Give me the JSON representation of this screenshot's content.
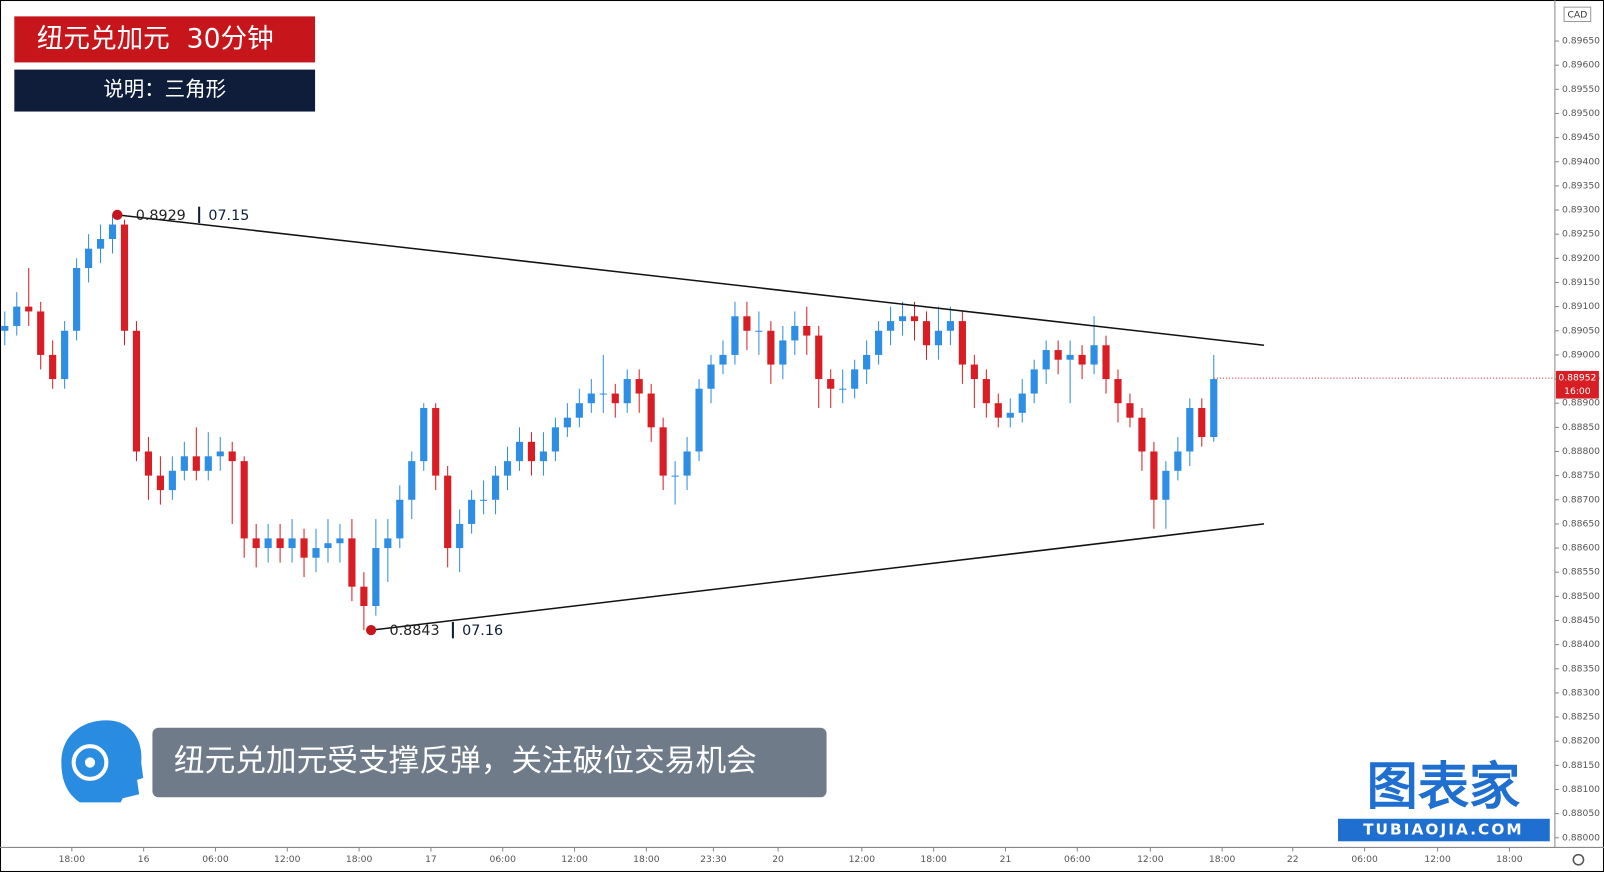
{
  "chart_data": {
    "type": "candlestick",
    "title": "纽元兑加元  30分钟",
    "subtitle": "说明：三角形",
    "caption": "纽元兑加元受支撑反弹，关注破位交易机会",
    "currency": "CAD",
    "watermark": "图表家",
    "watermark_url": "TUBIAOJIA.COM",
    "up_color": "#2e8ee3",
    "down_color": "#d81e24",
    "open": [
      0.8905,
      0.8906,
      0.891,
      0.8909,
      0.89,
      0.8895,
      0.8905,
      0.8918,
      0.8922,
      0.8924,
      0.8927,
      0.8905,
      0.888,
      0.8875,
      0.8872,
      0.8876,
      0.8879,
      0.8876,
      0.8879,
      0.888,
      0.8878,
      0.8862,
      0.886,
      0.8862,
      0.886,
      0.8862,
      0.8858,
      0.886,
      0.8861,
      0.8862,
      0.8852,
      0.8848,
      0.886,
      0.8862,
      0.887,
      0.8878,
      0.8889,
      0.8875,
      0.886,
      0.8865,
      0.887,
      0.887,
      0.8875,
      0.8878,
      0.8882,
      0.8878,
      0.888,
      0.8885,
      0.8887,
      0.889,
      0.8892,
      0.8892,
      0.889,
      0.8895,
      0.8892,
      0.8885,
      0.8875,
      0.8875,
      0.888,
      0.8893,
      0.8898,
      0.89,
      0.8908,
      0.8905,
      0.8905,
      0.8898,
      0.8903,
      0.8906,
      0.8904,
      0.8895,
      0.8893,
      0.8893,
      0.8897,
      0.89,
      0.8905,
      0.8907,
      0.8908,
      0.8907,
      0.8902,
      0.8905,
      0.8907,
      0.8898,
      0.8895,
      0.889,
      0.8887,
      0.8888,
      0.8892,
      0.8897,
      0.8901,
      0.8899,
      0.89,
      0.8898,
      0.8902,
      0.8895,
      0.889,
      0.8887,
      0.888,
      0.887,
      0.8876,
      0.888,
      0.8889,
      0.8883
    ],
    "high": [
      0.8909,
      0.8913,
      0.8918,
      0.8911,
      0.8903,
      0.8907,
      0.892,
      0.8925,
      0.8927,
      0.8929,
      0.8928,
      0.8907,
      0.8883,
      0.8879,
      0.8879,
      0.8882,
      0.8885,
      0.8884,
      0.8883,
      0.8882,
      0.8879,
      0.8865,
      0.8865,
      0.8865,
      0.8866,
      0.8864,
      0.8864,
      0.8866,
      0.8865,
      0.8866,
      0.8855,
      0.8866,
      0.8866,
      0.8873,
      0.888,
      0.889,
      0.889,
      0.8877,
      0.8868,
      0.8872,
      0.8874,
      0.8877,
      0.8881,
      0.8885,
      0.8884,
      0.8884,
      0.8887,
      0.889,
      0.8893,
      0.8895,
      0.89,
      0.8894,
      0.8897,
      0.8897,
      0.8894,
      0.8887,
      0.8878,
      0.8883,
      0.8895,
      0.89,
      0.8903,
      0.8911,
      0.8911,
      0.8909,
      0.8907,
      0.8906,
      0.8909,
      0.891,
      0.8906,
      0.8897,
      0.8897,
      0.8899,
      0.8903,
      0.8907,
      0.891,
      0.8911,
      0.8911,
      0.8909,
      0.891,
      0.891,
      0.8909,
      0.89,
      0.8897,
      0.8892,
      0.8891,
      0.8895,
      0.8899,
      0.8903,
      0.8903,
      0.8903,
      0.8902,
      0.8908,
      0.8904,
      0.8897,
      0.8892,
      0.8889,
      0.8882,
      0.8878,
      0.8883,
      0.8891,
      0.8891,
      0.89
    ],
    "low": [
      0.8902,
      0.8904,
      0.8906,
      0.8897,
      0.8893,
      0.8893,
      0.8903,
      0.8915,
      0.8919,
      0.8921,
      0.8902,
      0.8878,
      0.887,
      0.8869,
      0.887,
      0.8874,
      0.8874,
      0.8874,
      0.8876,
      0.8865,
      0.8858,
      0.8856,
      0.8857,
      0.8857,
      0.8857,
      0.8854,
      0.8855,
      0.8857,
      0.8857,
      0.8849,
      0.8843,
      0.8846,
      0.8853,
      0.886,
      0.8866,
      0.8876,
      0.8872,
      0.8856,
      0.8855,
      0.8863,
      0.8867,
      0.8867,
      0.8872,
      0.8876,
      0.8875,
      0.8875,
      0.8878,
      0.8883,
      0.8885,
      0.8888,
      0.8888,
      0.8887,
      0.8888,
      0.8888,
      0.8882,
      0.8872,
      0.8869,
      0.8872,
      0.8878,
      0.889,
      0.8896,
      0.8898,
      0.8901,
      0.89,
      0.8894,
      0.8895,
      0.89,
      0.89,
      0.8889,
      0.8889,
      0.889,
      0.8891,
      0.8894,
      0.8898,
      0.8902,
      0.8904,
      0.8903,
      0.8899,
      0.8899,
      0.8902,
      0.8894,
      0.8889,
      0.8887,
      0.8885,
      0.8885,
      0.8886,
      0.889,
      0.8894,
      0.8896,
      0.889,
      0.8895,
      0.8896,
      0.8892,
      0.8886,
      0.8885,
      0.8876,
      0.8864,
      0.8864,
      0.8874,
      0.8877,
      0.8881,
      0.8882
    ],
    "close": [
      0.8906,
      0.891,
      0.8909,
      0.89,
      0.8895,
      0.8905,
      0.8918,
      0.8922,
      0.8924,
      0.8927,
      0.8905,
      0.888,
      0.8875,
      0.8872,
      0.8876,
      0.8879,
      0.8876,
      0.8879,
      0.888,
      0.8878,
      0.8862,
      0.886,
      0.8862,
      0.886,
      0.8862,
      0.8858,
      0.886,
      0.8861,
      0.8862,
      0.8852,
      0.8848,
      0.886,
      0.8862,
      0.887,
      0.8878,
      0.8889,
      0.8875,
      0.886,
      0.8865,
      0.887,
      0.887,
      0.8875,
      0.8878,
      0.8882,
      0.8878,
      0.888,
      0.8885,
      0.8887,
      0.889,
      0.8892,
      0.8892,
      0.889,
      0.8895,
      0.8892,
      0.8885,
      0.8875,
      0.8875,
      0.888,
      0.8893,
      0.8898,
      0.89,
      0.8908,
      0.8905,
      0.8905,
      0.8898,
      0.8903,
      0.8906,
      0.8904,
      0.8895,
      0.8893,
      0.8893,
      0.8897,
      0.89,
      0.8905,
      0.8907,
      0.8908,
      0.8907,
      0.8902,
      0.8905,
      0.8907,
      0.8898,
      0.8895,
      0.889,
      0.8887,
      0.8888,
      0.8892,
      0.8897,
      0.8901,
      0.8899,
      0.89,
      0.8898,
      0.8902,
      0.8895,
      0.889,
      0.8887,
      0.888,
      0.887,
      0.8876,
      0.888,
      0.8889,
      0.8883,
      0.8895
    ],
    "xlim": [
      -0.4,
      129.5
    ],
    "xticks": [
      {
        "value": 5.6,
        "label": "18:00"
      },
      {
        "value": 11.6,
        "label": "16"
      },
      {
        "value": 17.6,
        "label": "06:00"
      },
      {
        "value": 23.6,
        "label": "12:00"
      },
      {
        "value": 29.6,
        "label": "18:00"
      },
      {
        "value": 35.6,
        "label": "17"
      },
      {
        "value": 41.6,
        "label": "06:00"
      },
      {
        "value": 47.6,
        "label": "12:00"
      },
      {
        "value": 53.6,
        "label": "18:00"
      },
      {
        "value": 59.2,
        "label": "23:30"
      },
      {
        "value": 64.6,
        "label": "20"
      },
      {
        "value": 71.6,
        "label": "12:00"
      },
      {
        "value": 77.6,
        "label": "18:00"
      },
      {
        "value": 83.6,
        "label": "21"
      },
      {
        "value": 89.6,
        "label": "06:00"
      },
      {
        "value": 95.7,
        "label": "12:00"
      },
      {
        "value": 101.7,
        "label": "18:00"
      },
      {
        "value": 107.6,
        "label": "22"
      },
      {
        "value": 113.6,
        "label": "06:00"
      },
      {
        "value": 119.7,
        "label": "12:00"
      },
      {
        "value": 125.7,
        "label": "18:00"
      }
    ],
    "ylim": [
      0.8798,
      0.89735
    ],
    "yticks": [
      {
        "value": 0.8965,
        "label": "0.89650"
      },
      {
        "value": 0.896,
        "label": "0.89600"
      },
      {
        "value": 0.8955,
        "label": "0.89550"
      },
      {
        "value": 0.895,
        "label": "0.89500"
      },
      {
        "value": 0.8945,
        "label": "0.89450"
      },
      {
        "value": 0.894,
        "label": "0.89400"
      },
      {
        "value": 0.8935,
        "label": "0.89350"
      },
      {
        "value": 0.893,
        "label": "0.89300"
      },
      {
        "value": 0.8925,
        "label": "0.89250"
      },
      {
        "value": 0.892,
        "label": "0.89200"
      },
      {
        "value": 0.8915,
        "label": "0.89150"
      },
      {
        "value": 0.891,
        "label": "0.89100"
      },
      {
        "value": 0.8905,
        "label": "0.89050"
      },
      {
        "value": 0.89,
        "label": "0.89000"
      },
      {
        "value": 0.8895,
        "label": "0.88950"
      },
      {
        "value": 0.889,
        "label": "0.88900"
      },
      {
        "value": 0.8885,
        "label": "0.88850"
      },
      {
        "value": 0.888,
        "label": "0.88800"
      },
      {
        "value": 0.8875,
        "label": "0.88750"
      },
      {
        "value": 0.887,
        "label": "0.88700"
      },
      {
        "value": 0.8865,
        "label": "0.88650"
      },
      {
        "value": 0.886,
        "label": "0.88600"
      },
      {
        "value": 0.8855,
        "label": "0.88550"
      },
      {
        "value": 0.885,
        "label": "0.88500"
      },
      {
        "value": 0.8845,
        "label": "0.88450"
      },
      {
        "value": 0.884,
        "label": "0.88400"
      },
      {
        "value": 0.8835,
        "label": "0.88350"
      },
      {
        "value": 0.883,
        "label": "0.88300"
      },
      {
        "value": 0.8825,
        "label": "0.88250"
      },
      {
        "value": 0.882,
        "label": "0.88200"
      },
      {
        "value": 0.8815,
        "label": "0.88150"
      },
      {
        "value": 0.881,
        "label": "0.88100"
      },
      {
        "value": 0.8805,
        "label": "0.88050"
      },
      {
        "value": 0.88,
        "label": "0.88000"
      }
    ],
    "last_price": 0.88952,
    "countdown": "16:00",
    "trendlines": [
      {
        "x": [
          9.4,
          105.2
        ],
        "y": [
          0.8929,
          0.8902
        ],
        "price_label": "0.8929",
        "date_label": "07.15"
      },
      {
        "x": [
          30.6,
          105.2
        ],
        "y": [
          0.8843,
          0.8865
        ],
        "price_label": "0.8843",
        "date_label": "07.16"
      }
    ]
  }
}
